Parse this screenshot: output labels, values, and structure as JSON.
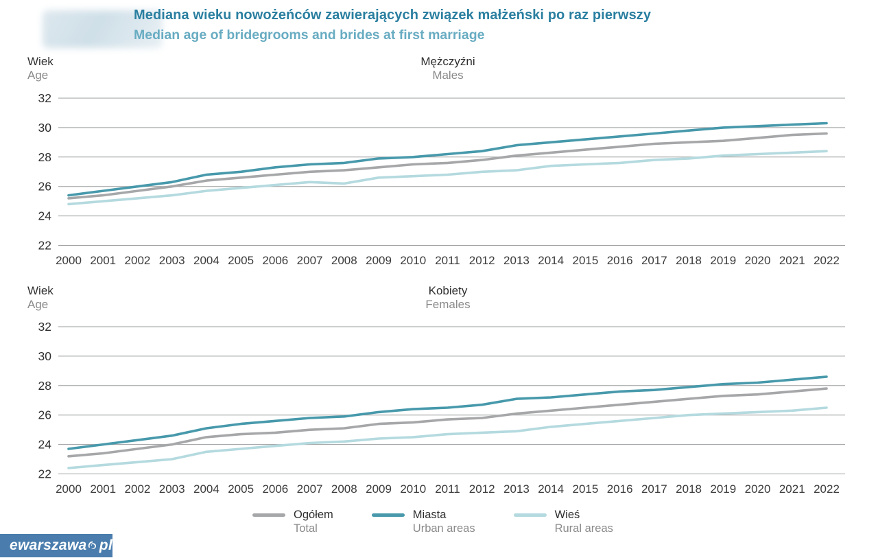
{
  "header": {
    "title_pl": "Mediana wieku nowożeńców zawierających związek małżeński po raz pierwszy",
    "title_en": "Median age of bridegrooms and brides at first marriage"
  },
  "colors": {
    "title": "#2a7fa0",
    "subtitle": "#68acc2",
    "total": "#a6a7a9",
    "urban": "#4799ab",
    "rural": "#b4dadf",
    "grid": "#9b9d9e",
    "tick": "#3b3b3b",
    "footer_bg": "#4a7dad"
  },
  "axis": {
    "label_pl": "Wiek",
    "label_en": "Age",
    "ymin": 22,
    "ymax": 32,
    "yticks": [
      32,
      30,
      28,
      26,
      24,
      22
    ]
  },
  "years": [
    2000,
    2001,
    2002,
    2003,
    2004,
    2005,
    2006,
    2007,
    2008,
    2009,
    2010,
    2011,
    2012,
    2013,
    2014,
    2015,
    2016,
    2017,
    2018,
    2019,
    2020,
    2021,
    2022
  ],
  "legend": [
    {
      "key": "total",
      "pl": "Ogółem",
      "en": "Total"
    },
    {
      "key": "urban",
      "pl": "Miasta",
      "en": "Urban areas"
    },
    {
      "key": "rural",
      "pl": "Wieś",
      "en": "Rural areas"
    }
  ],
  "footer": {
    "text_left": "ewarszawa",
    "text_right": "pl"
  },
  "chart_data": [
    {
      "type": "line",
      "id": "males",
      "title_pl": "Mężczyźni",
      "title_en": "Males",
      "ylabel": "Wiek / Age",
      "ylim": [
        22,
        32
      ],
      "grid": true,
      "legend_position": "bottom",
      "x": [
        2000,
        2001,
        2002,
        2003,
        2004,
        2005,
        2006,
        2007,
        2008,
        2009,
        2010,
        2011,
        2012,
        2013,
        2014,
        2015,
        2016,
        2017,
        2018,
        2019,
        2020,
        2021,
        2022
      ],
      "series": [
        {
          "key": "total",
          "name": "Ogółem / Total",
          "values": [
            25.2,
            25.4,
            25.7,
            26.0,
            26.4,
            26.6,
            26.8,
            27.0,
            27.1,
            27.3,
            27.5,
            27.6,
            27.8,
            28.1,
            28.3,
            28.5,
            28.7,
            28.9,
            29.0,
            29.1,
            29.3,
            29.5,
            29.6
          ]
        },
        {
          "key": "urban",
          "name": "Miasta / Urban areas",
          "values": [
            25.4,
            25.7,
            26.0,
            26.3,
            26.8,
            27.0,
            27.3,
            27.5,
            27.6,
            27.9,
            28.0,
            28.2,
            28.4,
            28.8,
            29.0,
            29.2,
            29.4,
            29.6,
            29.8,
            30.0,
            30.1,
            30.2,
            30.3
          ]
        },
        {
          "key": "rural",
          "name": "Wieś / Rural areas",
          "values": [
            24.8,
            25.0,
            25.2,
            25.4,
            25.7,
            25.9,
            26.1,
            26.3,
            26.2,
            26.6,
            26.7,
            26.8,
            27.0,
            27.1,
            27.4,
            27.5,
            27.6,
            27.8,
            27.9,
            28.1,
            28.2,
            28.3,
            28.4
          ]
        }
      ]
    },
    {
      "type": "line",
      "id": "females",
      "title_pl": "Kobiety",
      "title_en": "Females",
      "ylabel": "Wiek / Age",
      "ylim": [
        22,
        32
      ],
      "grid": true,
      "legend_position": "bottom",
      "x": [
        2000,
        2001,
        2002,
        2003,
        2004,
        2005,
        2006,
        2007,
        2008,
        2009,
        2010,
        2011,
        2012,
        2013,
        2014,
        2015,
        2016,
        2017,
        2018,
        2019,
        2020,
        2021,
        2022
      ],
      "series": [
        {
          "key": "total",
          "name": "Ogółem / Total",
          "values": [
            23.2,
            23.4,
            23.7,
            24.0,
            24.5,
            24.7,
            24.8,
            25.0,
            25.1,
            25.4,
            25.5,
            25.7,
            25.8,
            26.1,
            26.3,
            26.5,
            26.7,
            26.9,
            27.1,
            27.3,
            27.4,
            27.6,
            27.8
          ]
        },
        {
          "key": "urban",
          "name": "Miasta / Urban areas",
          "values": [
            23.7,
            24.0,
            24.3,
            24.6,
            25.1,
            25.4,
            25.6,
            25.8,
            25.9,
            26.2,
            26.4,
            26.5,
            26.7,
            27.1,
            27.2,
            27.4,
            27.6,
            27.7,
            27.9,
            28.1,
            28.2,
            28.4,
            28.6
          ]
        },
        {
          "key": "rural",
          "name": "Wieś / Rural areas",
          "values": [
            22.4,
            22.6,
            22.8,
            23.0,
            23.5,
            23.7,
            23.9,
            24.1,
            24.2,
            24.4,
            24.5,
            24.7,
            24.8,
            24.9,
            25.2,
            25.4,
            25.6,
            25.8,
            26.0,
            26.1,
            26.2,
            26.3,
            26.5
          ]
        }
      ]
    }
  ]
}
